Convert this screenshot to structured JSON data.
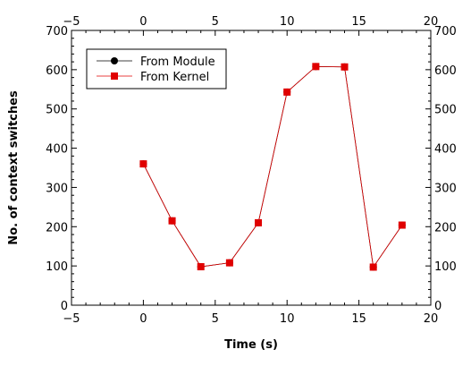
{
  "chart_data": {
    "type": "line",
    "title": "",
    "xlabel": "Time (s)",
    "ylabel": "No. of context switches",
    "xlim": [
      -5,
      20
    ],
    "ylim": [
      0,
      700
    ],
    "x_ticks": [
      -5,
      0,
      5,
      10,
      15,
      20
    ],
    "y_ticks": [
      0,
      100,
      200,
      300,
      400,
      500,
      600,
      700
    ],
    "x_tick_labels": [
      "−5",
      "0",
      "5",
      "10",
      "15",
      "20"
    ],
    "y_tick_labels": [
      "0",
      "100",
      "200",
      "300",
      "400",
      "500",
      "600",
      "700"
    ],
    "grid": false,
    "legend_position": "top-left",
    "series": [
      {
        "name": "From Module",
        "color": "#000000",
        "marker": "circle",
        "x": [
          0,
          2,
          4,
          6,
          8,
          10,
          12,
          14,
          16,
          18
        ],
        "y": [
          360,
          215,
          98,
          108,
          210,
          543,
          608,
          607,
          97,
          204
        ]
      },
      {
        "name": "From Kernel",
        "color": "#e00000",
        "marker": "square",
        "x": [
          0,
          2,
          4,
          6,
          8,
          10,
          12,
          14,
          16,
          18
        ],
        "y": [
          360,
          215,
          98,
          108,
          210,
          543,
          608,
          607,
          97,
          204
        ]
      }
    ]
  }
}
